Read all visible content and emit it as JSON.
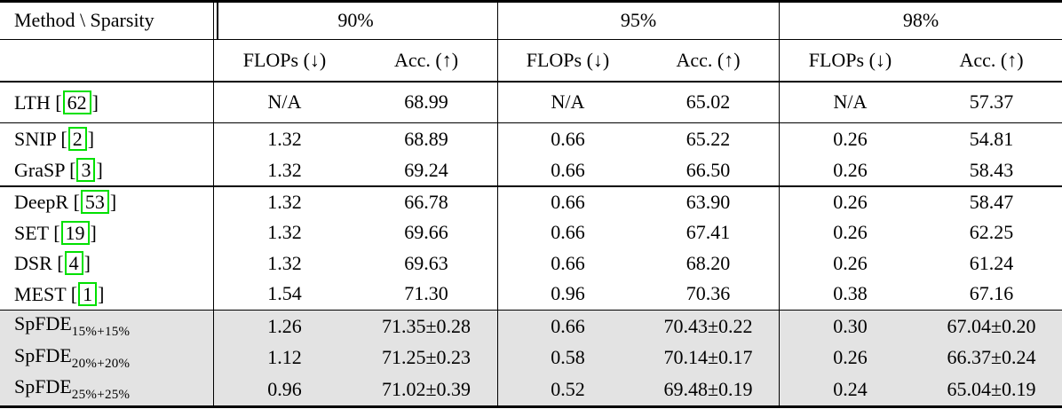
{
  "header": {
    "corner": "Method \\ Sparsity",
    "groups": [
      "90%",
      "95%",
      "98%"
    ],
    "flops_label": "FLOPs (↓)",
    "acc_label": "Acc. (↑)"
  },
  "punct": {
    "open": " [",
    "close": "]"
  },
  "colors": {
    "highlight": "#e3e3e3",
    "citation_box": "#00e000"
  },
  "sections": [
    {
      "rows": [
        {
          "method": "LTH",
          "cite": "62",
          "cells": [
            "N/A",
            "68.99",
            "N/A",
            "65.02",
            "N/A",
            "57.37"
          ]
        }
      ]
    },
    {
      "rows": [
        {
          "method": "SNIP",
          "cite": "2",
          "cells": [
            "1.32",
            "68.89",
            "0.66",
            "65.22",
            "0.26",
            "54.81"
          ]
        },
        {
          "method": "GraSP",
          "cite": "3",
          "cells": [
            "1.32",
            "69.24",
            "0.66",
            "66.50",
            "0.26",
            "58.43"
          ]
        }
      ]
    },
    {
      "rows": [
        {
          "method": "DeepR",
          "cite": "53",
          "cells": [
            "1.32",
            "66.78",
            "0.66",
            "63.90",
            "0.26",
            "58.47"
          ]
        },
        {
          "method": "SET",
          "cite": "19",
          "cells": [
            "1.32",
            "69.66",
            "0.66",
            "67.41",
            "0.26",
            "62.25"
          ]
        },
        {
          "method": "DSR",
          "cite": "4",
          "cells": [
            "1.32",
            "69.63",
            "0.66",
            "68.20",
            "0.26",
            "61.24"
          ]
        },
        {
          "method": "MEST",
          "cite": "1",
          "cells": [
            "1.54",
            "71.30",
            "0.96",
            "70.36",
            "0.38",
            "67.16"
          ]
        }
      ]
    },
    {
      "highlighted": true,
      "rows": [
        {
          "method": "SpFDE",
          "subscript": "15%+15%",
          "cells": [
            "1.26",
            "71.35±0.28",
            "0.66",
            "70.43±0.22",
            "0.30",
            "67.04±0.20"
          ]
        },
        {
          "method": "SpFDE",
          "subscript": "20%+20%",
          "cells": [
            "1.12",
            "71.25±0.23",
            "0.58",
            "70.14±0.17",
            "0.26",
            "66.37±0.24"
          ]
        },
        {
          "method": "SpFDE",
          "subscript": "25%+25%",
          "cells": [
            "0.96",
            "71.02±0.39",
            "0.52",
            "69.48±0.19",
            "0.24",
            "65.04±0.19"
          ]
        }
      ]
    }
  ]
}
